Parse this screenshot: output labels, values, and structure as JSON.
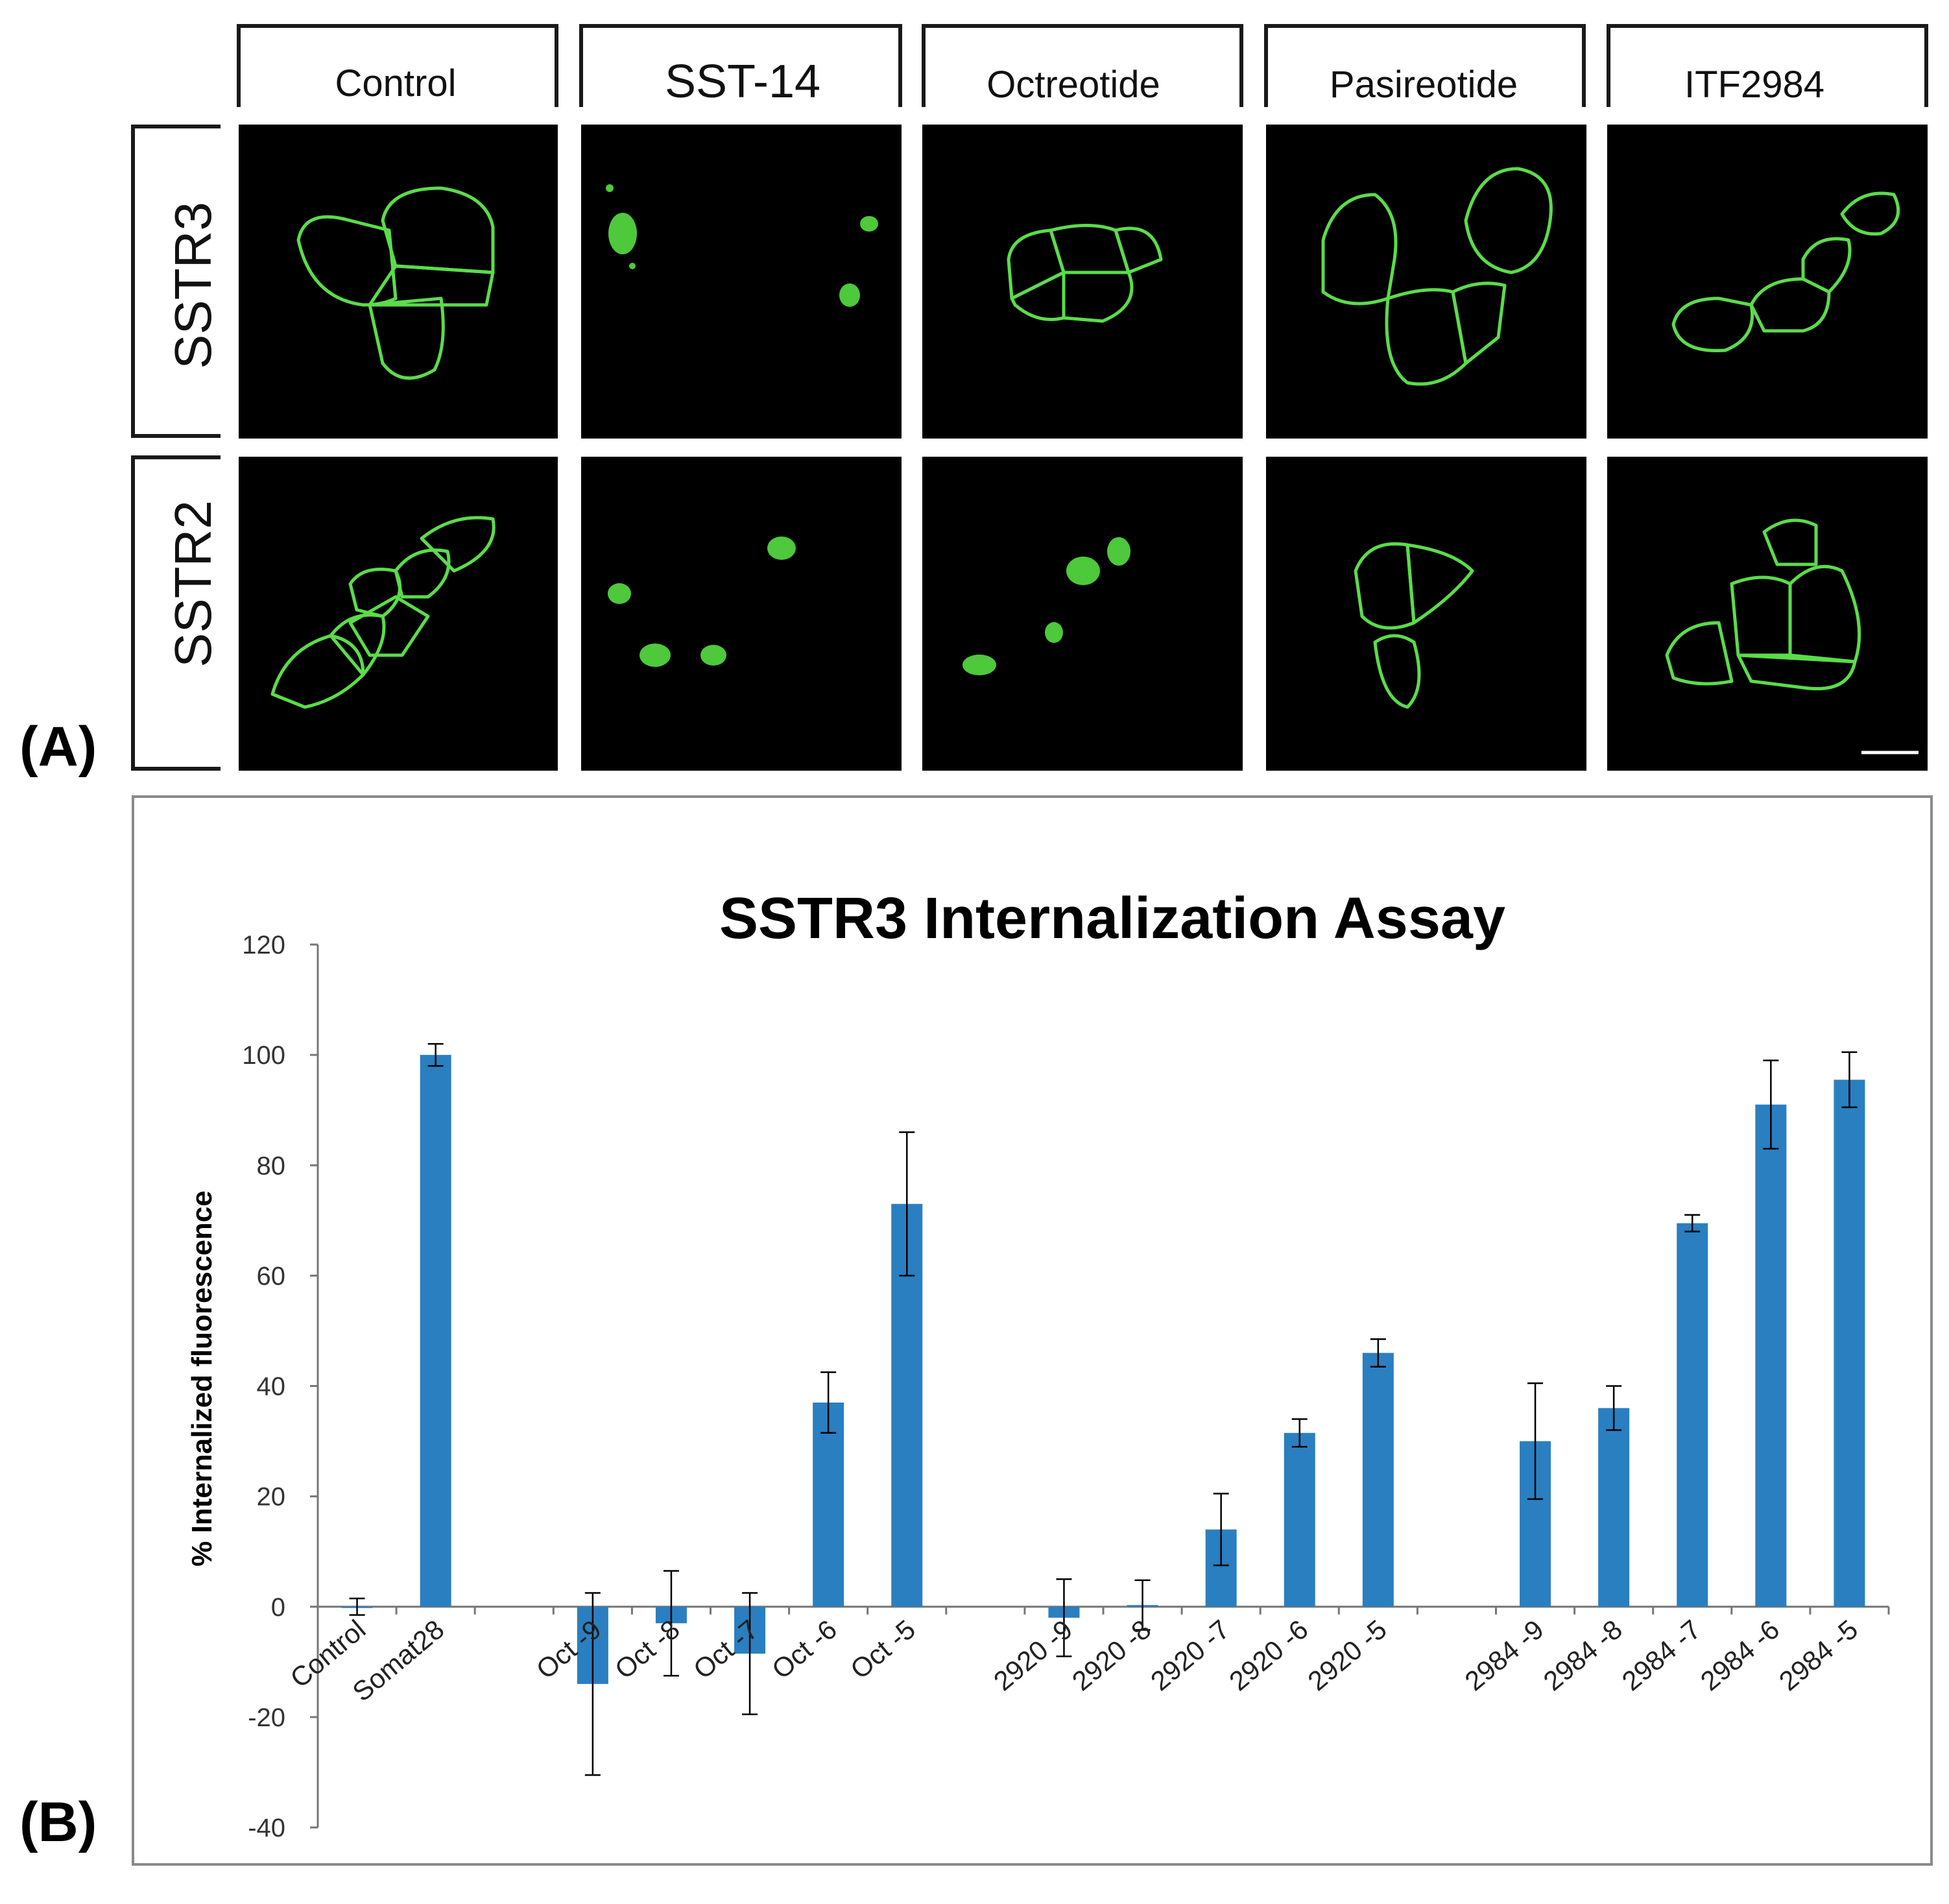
{
  "panel_a": {
    "label": "(A)",
    "columns": [
      "Control",
      "SST-14",
      "Octreotide",
      "Pasireotide",
      "ITF2984"
    ],
    "rows": [
      "SSTR3",
      "SSTR2"
    ]
  },
  "panel_b": {
    "label": "(B)"
  },
  "colors": {
    "bar": "#2a7fc1",
    "cell": "#5bdc4a",
    "frame": "#1a1a1a"
  },
  "chart_data": {
    "type": "bar",
    "title": "SSTR3 Internalization Assay",
    "xlabel": "",
    "ylabel": "% Internalized fluorescence",
    "ylim": [
      -40,
      120
    ],
    "yticks": [
      -40,
      -20,
      0,
      20,
      40,
      60,
      80,
      100,
      120
    ],
    "grid": false,
    "legend": "none",
    "categories": [
      "Control",
      "Somat28",
      "",
      "Oct -9",
      "Oct -8",
      "Oct -7",
      "Oct -6",
      "Oct -5",
      "",
      "2920 -9",
      "2920 -8",
      "2920 -7",
      "2920 -6",
      "2920 -5",
      "",
      "2984 -9",
      "2984 -8",
      "2984 -7",
      "2984 -6",
      "2984 -5"
    ],
    "values": [
      0,
      100,
      null,
      -14,
      -3,
      -8.5,
      37,
      73,
      null,
      -2,
      0.3,
      14,
      31.5,
      46,
      null,
      30,
      36,
      69.5,
      91,
      95.5
    ],
    "errors": [
      1.5,
      2,
      null,
      16.5,
      9.5,
      11,
      5.5,
      13,
      null,
      7,
      4.5,
      6.5,
      2.5,
      2.5,
      null,
      10.5,
      4,
      1.5,
      8,
      5
    ]
  }
}
